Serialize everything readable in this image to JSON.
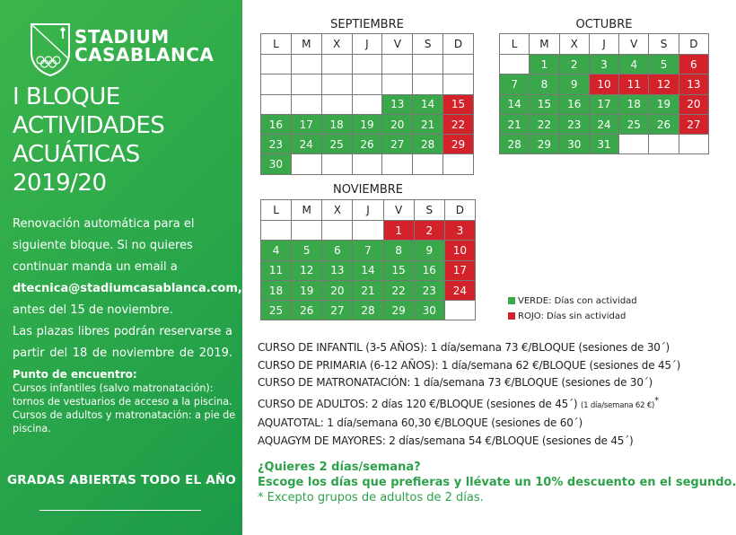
{
  "colors": {
    "panel_green": "#2ba84a",
    "active_green": "#3aa74a",
    "inactive_red": "#d3222a",
    "promo_green": "#2ea24a"
  },
  "logo": {
    "name": "STADIUM CASABLANCA",
    "line1": "STADIUM",
    "line2": "CASABLANCA",
    "icon": "shield-olympic-rings-icon"
  },
  "title": [
    "I BLOQUE",
    "ACTIVIDADES",
    "ACUÁTICAS",
    "2019/20"
  ],
  "renovation": {
    "line1": "Renovación automática para el siguiente bloque. Si no quieres continuar manda un email a",
    "email": "dtecnica@stadiumcasablanca.com,",
    "line2": "antes del 15 de noviembre.",
    "line3": "Las plazas libres podrán reservarse a partir del 18 de noviembre de 2019."
  },
  "meeting": {
    "heading": "Punto de encuentro:",
    "line1": "Cursos infantiles (salvo matronatación): tornos de vestuarios de acceso a la piscina.",
    "line2": "Cursos de adultos y matronatación: a pie de piscina."
  },
  "gradas": "GRADAS ABIERTAS TODO EL AÑO",
  "weekdays": [
    "L",
    "M",
    "X",
    "J",
    "V",
    "S",
    "D"
  ],
  "months": [
    {
      "name": "SEPTIEMBRE",
      "weeks": [
        [
          [
            "",
            ""
          ],
          [
            "",
            ""
          ],
          [
            "",
            ""
          ],
          [
            "",
            ""
          ],
          [
            "",
            ""
          ],
          [
            "",
            ""
          ],
          [
            "",
            ""
          ]
        ],
        [
          [
            "",
            ""
          ],
          [
            "",
            ""
          ],
          [
            "",
            ""
          ],
          [
            "",
            ""
          ],
          [
            "",
            ""
          ],
          [
            "",
            ""
          ],
          [
            "",
            ""
          ]
        ],
        [
          [
            "",
            ""
          ],
          [
            "",
            ""
          ],
          [
            "",
            ""
          ],
          [
            "",
            ""
          ],
          [
            "13",
            "g"
          ],
          [
            "14",
            "g"
          ],
          [
            "15",
            "r"
          ]
        ],
        [
          [
            "16",
            "g"
          ],
          [
            "17",
            "g"
          ],
          [
            "18",
            "g"
          ],
          [
            "19",
            "g"
          ],
          [
            "20",
            "g"
          ],
          [
            "21",
            "g"
          ],
          [
            "22",
            "r"
          ]
        ],
        [
          [
            "23",
            "g"
          ],
          [
            "24",
            "g"
          ],
          [
            "25",
            "g"
          ],
          [
            "26",
            "g"
          ],
          [
            "27",
            "g"
          ],
          [
            "28",
            "g"
          ],
          [
            "29",
            "r"
          ]
        ],
        [
          [
            "30",
            "g"
          ],
          [
            "",
            ""
          ],
          [
            "",
            ""
          ],
          [
            "",
            ""
          ],
          [
            "",
            ""
          ],
          [
            "",
            ""
          ],
          [
            "",
            ""
          ]
        ]
      ]
    },
    {
      "name": "OCTUBRE",
      "weeks": [
        [
          [
            "",
            ""
          ],
          [
            "1",
            "g"
          ],
          [
            "2",
            "g"
          ],
          [
            "3",
            "g"
          ],
          [
            "4",
            "g"
          ],
          [
            "5",
            "g"
          ],
          [
            "6",
            "r"
          ]
        ],
        [
          [
            "7",
            "g"
          ],
          [
            "8",
            "g"
          ],
          [
            "9",
            "g"
          ],
          [
            "10",
            "r"
          ],
          [
            "11",
            "r"
          ],
          [
            "12",
            "r"
          ],
          [
            "13",
            "r"
          ]
        ],
        [
          [
            "14",
            "g"
          ],
          [
            "15",
            "g"
          ],
          [
            "16",
            "g"
          ],
          [
            "17",
            "g"
          ],
          [
            "18",
            "g"
          ],
          [
            "19",
            "g"
          ],
          [
            "20",
            "r"
          ]
        ],
        [
          [
            "21",
            "g"
          ],
          [
            "22",
            "g"
          ],
          [
            "23",
            "g"
          ],
          [
            "24",
            "g"
          ],
          [
            "25",
            "g"
          ],
          [
            "26",
            "g"
          ],
          [
            "27",
            "r"
          ]
        ],
        [
          [
            "28",
            "g"
          ],
          [
            "29",
            "g"
          ],
          [
            "30",
            "g"
          ],
          [
            "31",
            "g"
          ],
          [
            "",
            ""
          ],
          [
            "",
            ""
          ],
          [
            "",
            ""
          ]
        ]
      ]
    },
    {
      "name": "NOVIEMBRE",
      "weeks": [
        [
          [
            "",
            ""
          ],
          [
            "",
            ""
          ],
          [
            "",
            ""
          ],
          [
            "",
            ""
          ],
          [
            "1",
            "r"
          ],
          [
            "2",
            "r"
          ],
          [
            "3",
            "r"
          ]
        ],
        [
          [
            "4",
            "g"
          ],
          [
            "5",
            "g"
          ],
          [
            "6",
            "g"
          ],
          [
            "7",
            "g"
          ],
          [
            "8",
            "g"
          ],
          [
            "9",
            "g"
          ],
          [
            "10",
            "r"
          ]
        ],
        [
          [
            "11",
            "g"
          ],
          [
            "12",
            "g"
          ],
          [
            "13",
            "g"
          ],
          [
            "14",
            "g"
          ],
          [
            "15",
            "g"
          ],
          [
            "16",
            "g"
          ],
          [
            "17",
            "r"
          ]
        ],
        [
          [
            "18",
            "g"
          ],
          [
            "19",
            "g"
          ],
          [
            "20",
            "g"
          ],
          [
            "21",
            "g"
          ],
          [
            "22",
            "g"
          ],
          [
            "23",
            "g"
          ],
          [
            "24",
            "r"
          ]
        ],
        [
          [
            "25",
            "g"
          ],
          [
            "26",
            "g"
          ],
          [
            "27",
            "g"
          ],
          [
            "28",
            "g"
          ],
          [
            "29",
            "g"
          ],
          [
            "30",
            "g"
          ],
          [
            "",
            ""
          ]
        ]
      ]
    }
  ],
  "legend": {
    "green": "VERDE: Días con actividad",
    "red": "ROJO: Días sin actividad"
  },
  "prices": [
    "CURSO DE INFANTIL (3-5 AÑOS): 1 día/semana 73 €/BLOQUE (sesiones de 30´)",
    "CURSO DE PRIMARIA (6-12 AÑOS): 1 día/semana 62 €/BLOQUE (sesiones de 45´)",
    "CURSO DE MATRONATACIÓN: 1 día/semana 73 €/BLOQUE  (sesiones de 30´)",
    "CURSO DE ADULTOS: 2 días 120 €/BLOQUE (sesiones de 45´)",
    "AQUATOTAL: 1 día/semana 60,30 €/BLOQUE (sesiones de 60´)",
    "AQUAGYM DE MAYORES: 2 días/semana 54 €/BLOQUE (sesiones de 45´)"
  ],
  "adult_note": "(1 día/semana 62 €)",
  "asterisk": "*",
  "promo": {
    "q": "¿Quieres 2 días/semana?",
    "offer": "Escoge los días que prefieras y llévate un 10% descuento en el segundo.",
    "note": "* Excepto grupos de adultos de 2 días."
  }
}
